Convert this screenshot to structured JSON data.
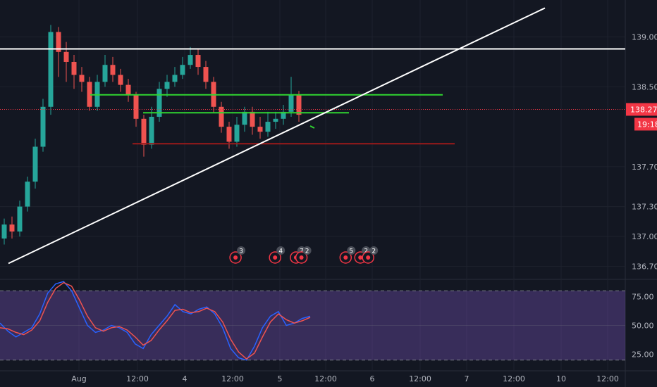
{
  "chart_data": [
    {
      "type": "candlestick",
      "name": "price",
      "y_ticks": [
        "139.000",
        "138.500",
        "137.700",
        "137.300",
        "137.000",
        "136.700"
      ],
      "y_tick_values": [
        139.0,
        138.5,
        137.7,
        137.3,
        137.0,
        136.7
      ],
      "ylim": [
        136.62,
        139.3
      ],
      "current_price": "138.274",
      "current_value": 138.274,
      "countdown": "19:18",
      "x_ticks": [
        "Aug",
        "12:00",
        "4",
        "12:00",
        "5",
        "12:00",
        "6",
        "12:00",
        "7",
        "12:00",
        "10",
        "12:00"
      ],
      "candles": [
        [
          136.98,
          137.12,
          137.18,
          136.92
        ],
        [
          137.12,
          137.05,
          137.2,
          136.98
        ],
        [
          137.05,
          137.3,
          137.36,
          137.0
        ],
        [
          137.3,
          137.55,
          137.6,
          137.25
        ],
        [
          137.55,
          137.9,
          137.98,
          137.48
        ],
        [
          137.9,
          138.3,
          138.38,
          137.85
        ],
        [
          138.3,
          139.05,
          139.12,
          138.22
        ],
        [
          139.05,
          138.85,
          139.1,
          138.6
        ],
        [
          138.85,
          138.75,
          138.95,
          138.55
        ],
        [
          138.75,
          138.62,
          138.82,
          138.48
        ],
        [
          138.62,
          138.55,
          138.7,
          138.45
        ],
        [
          138.55,
          138.3,
          138.6,
          138.26
        ],
        [
          138.3,
          138.55,
          138.62,
          138.26
        ],
        [
          138.55,
          138.72,
          138.82,
          138.5
        ],
        [
          138.72,
          138.62,
          138.8,
          138.55
        ],
        [
          138.62,
          138.52,
          138.68,
          138.45
        ],
        [
          138.52,
          138.42,
          138.58,
          138.35
        ],
        [
          138.42,
          138.18,
          138.45,
          138.1
        ],
        [
          138.18,
          137.92,
          138.22,
          137.8
        ],
        [
          137.92,
          138.2,
          138.3,
          137.88
        ],
        [
          138.2,
          138.48,
          138.55,
          138.15
        ],
        [
          138.48,
          138.55,
          138.62,
          138.4
        ],
        [
          138.55,
          138.62,
          138.7,
          138.5
        ],
        [
          138.62,
          138.72,
          138.8,
          138.58
        ],
        [
          138.72,
          138.82,
          138.9,
          138.68
        ],
        [
          138.82,
          138.7,
          138.88,
          138.62
        ],
        [
          138.7,
          138.55,
          138.76,
          138.48
        ],
        [
          138.55,
          138.3,
          138.6,
          138.24
        ],
        [
          138.3,
          138.1,
          138.35,
          138.04
        ],
        [
          138.1,
          137.95,
          138.15,
          137.88
        ],
        [
          137.95,
          138.12,
          138.2,
          137.9
        ],
        [
          138.12,
          138.25,
          138.3,
          138.05
        ],
        [
          138.25,
          138.1,
          138.3,
          138.02
        ],
        [
          138.1,
          138.05,
          138.2,
          137.98
        ],
        [
          138.05,
          138.15,
          138.25,
          138.0
        ],
        [
          138.15,
          138.18,
          138.25,
          138.08
        ],
        [
          138.18,
          138.25,
          138.32,
          138.12
        ],
        [
          138.25,
          138.42,
          138.6,
          138.2
        ],
        [
          138.42,
          138.22,
          138.46,
          138.15
        ]
      ],
      "horizontal_lines": [
        {
          "price": 138.88,
          "color": "#ffffff"
        },
        {
          "price": 138.42,
          "color": "#30d530"
        },
        {
          "price": 138.24,
          "color": "#30d530"
        },
        {
          "price": 137.93,
          "color": "#9b1a1a"
        },
        {
          "price": 138.274,
          "color": "#f23645"
        }
      ],
      "trendline": {
        "from": [
          0,
          136.73
        ],
        "to": [
          51,
          139.29
        ],
        "color": "#ffffff"
      },
      "events": [
        {
          "label": "3",
          "pos": 30.1
        },
        {
          "label": "4",
          "pos": 35.2
        },
        {
          "label": "7",
          "pos": 37.9
        },
        {
          "label": "2",
          "pos": 38.6
        },
        {
          "label": "5",
          "pos": 44.3
        },
        {
          "label": "2",
          "pos": 46.2
        },
        {
          "label": "2",
          "pos": 47.2
        }
      ],
      "colors": {
        "up": "#26a69a",
        "down": "#ef5350",
        "background": "#131722"
      }
    },
    {
      "type": "line",
      "name": "stochastic-rsi",
      "y_ticks": [
        "75.00",
        "50.00",
        "25.00"
      ],
      "y_tick_values": [
        75,
        50,
        25
      ],
      "ylim": [
        15,
        85
      ],
      "bands": [
        80,
        20
      ],
      "band_color": "#7e57c2",
      "series": [
        {
          "color": "#2962ff",
          "values": [
            52,
            45,
            40,
            44,
            48,
            60,
            78,
            86,
            88,
            80,
            65,
            50,
            44,
            46,
            50,
            48,
            44,
            34,
            30,
            42,
            50,
            58,
            68,
            62,
            60,
            64,
            66,
            60,
            48,
            30,
            22,
            20,
            32,
            48,
            58,
            62,
            50,
            52,
            56,
            58
          ]
        },
        {
          "color": "#ef5350",
          "values": [
            48,
            47,
            44,
            42,
            46,
            54,
            70,
            82,
            87,
            84,
            72,
            58,
            48,
            45,
            48,
            49,
            46,
            40,
            33,
            37,
            46,
            54,
            63,
            64,
            61,
            62,
            65,
            62,
            53,
            38,
            27,
            21,
            26,
            40,
            53,
            60,
            55,
            52,
            54,
            57
          ]
        }
      ]
    }
  ]
}
